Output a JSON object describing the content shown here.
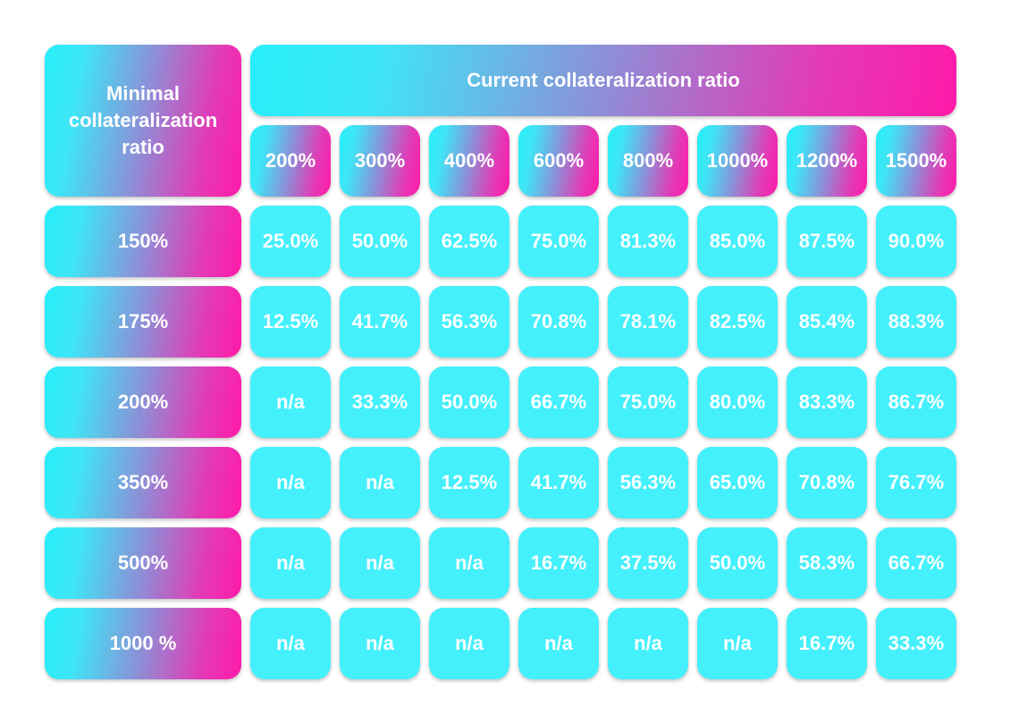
{
  "chart_data": {
    "type": "table",
    "corner_label": "Minimal collateralization ratio",
    "title": "Current collateralization ratio",
    "columns": [
      "200%",
      "300%",
      "400%",
      "600%",
      "800%",
      "1000%",
      "1200%",
      "1500%"
    ],
    "rows": [
      {
        "label": "150%",
        "values": [
          "25.0%",
          "50.0%",
          "62.5%",
          "75.0%",
          "81.3%",
          "85.0%",
          "87.5%",
          "90.0%"
        ]
      },
      {
        "label": "175%",
        "values": [
          "12.5%",
          "41.7%",
          "56.3%",
          "70.8%",
          "78.1%",
          "82.5%",
          "85.4%",
          "88.3%"
        ]
      },
      {
        "label": "200%",
        "values": [
          "n/a",
          "33.3%",
          "50.0%",
          "66.7%",
          "75.0%",
          "80.0%",
          "83.3%",
          "86.7%"
        ]
      },
      {
        "label": "350%",
        "values": [
          "n/a",
          "n/a",
          "12.5%",
          "41.7%",
          "56.3%",
          "65.0%",
          "70.8%",
          "76.7%"
        ]
      },
      {
        "label": "500%",
        "values": [
          "n/a",
          "n/a",
          "n/a",
          "16.7%",
          "37.5%",
          "50.0%",
          "58.3%",
          "66.7%"
        ]
      },
      {
        "label": "1000 %",
        "values": [
          "n/a",
          "n/a",
          "n/a",
          "n/a",
          "n/a",
          "n/a",
          "16.7%",
          "33.3%"
        ]
      }
    ],
    "colors": {
      "cell": "#44f0fb",
      "gradient_start": "#27eef9",
      "gradient_mid": "#8d8fd6",
      "gradient_end": "#ff1aa8",
      "text": "#ffffff"
    }
  }
}
